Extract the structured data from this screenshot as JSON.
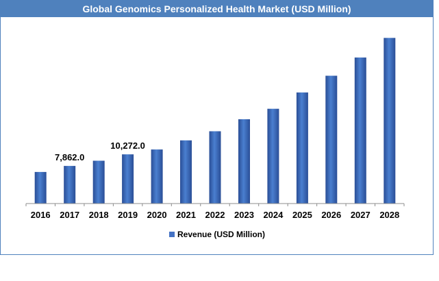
{
  "chart_data": {
    "type": "bar",
    "title": "Global Genomics Personalized Health Market (USD Million)",
    "categories": [
      "2016",
      "2017",
      "2018",
      "2019",
      "2020",
      "2021",
      "2022",
      "2023",
      "2024",
      "2025",
      "2026",
      "2027",
      "2028"
    ],
    "series": [
      {
        "name": "Revenue (USD Million)",
        "values": [
          6600,
          7862.0,
          8950,
          10272.0,
          11300,
          13200,
          15100,
          17600,
          19800,
          23200,
          26700,
          30500,
          34600
        ]
      }
    ],
    "data_labels": [
      {
        "index": 1,
        "text": "7,862.0"
      },
      {
        "index": 3,
        "text": "10,272.0"
      }
    ],
    "ylim": [
      0,
      36500
    ],
    "xlabel": "",
    "ylabel": "",
    "grid": false,
    "legend_position": "bottom",
    "colors": {
      "bar_dark": "#2a4e96",
      "bar_light": "#4a7fd0",
      "title_bg": "#4f81bd",
      "frame": "#4f81bd"
    }
  }
}
